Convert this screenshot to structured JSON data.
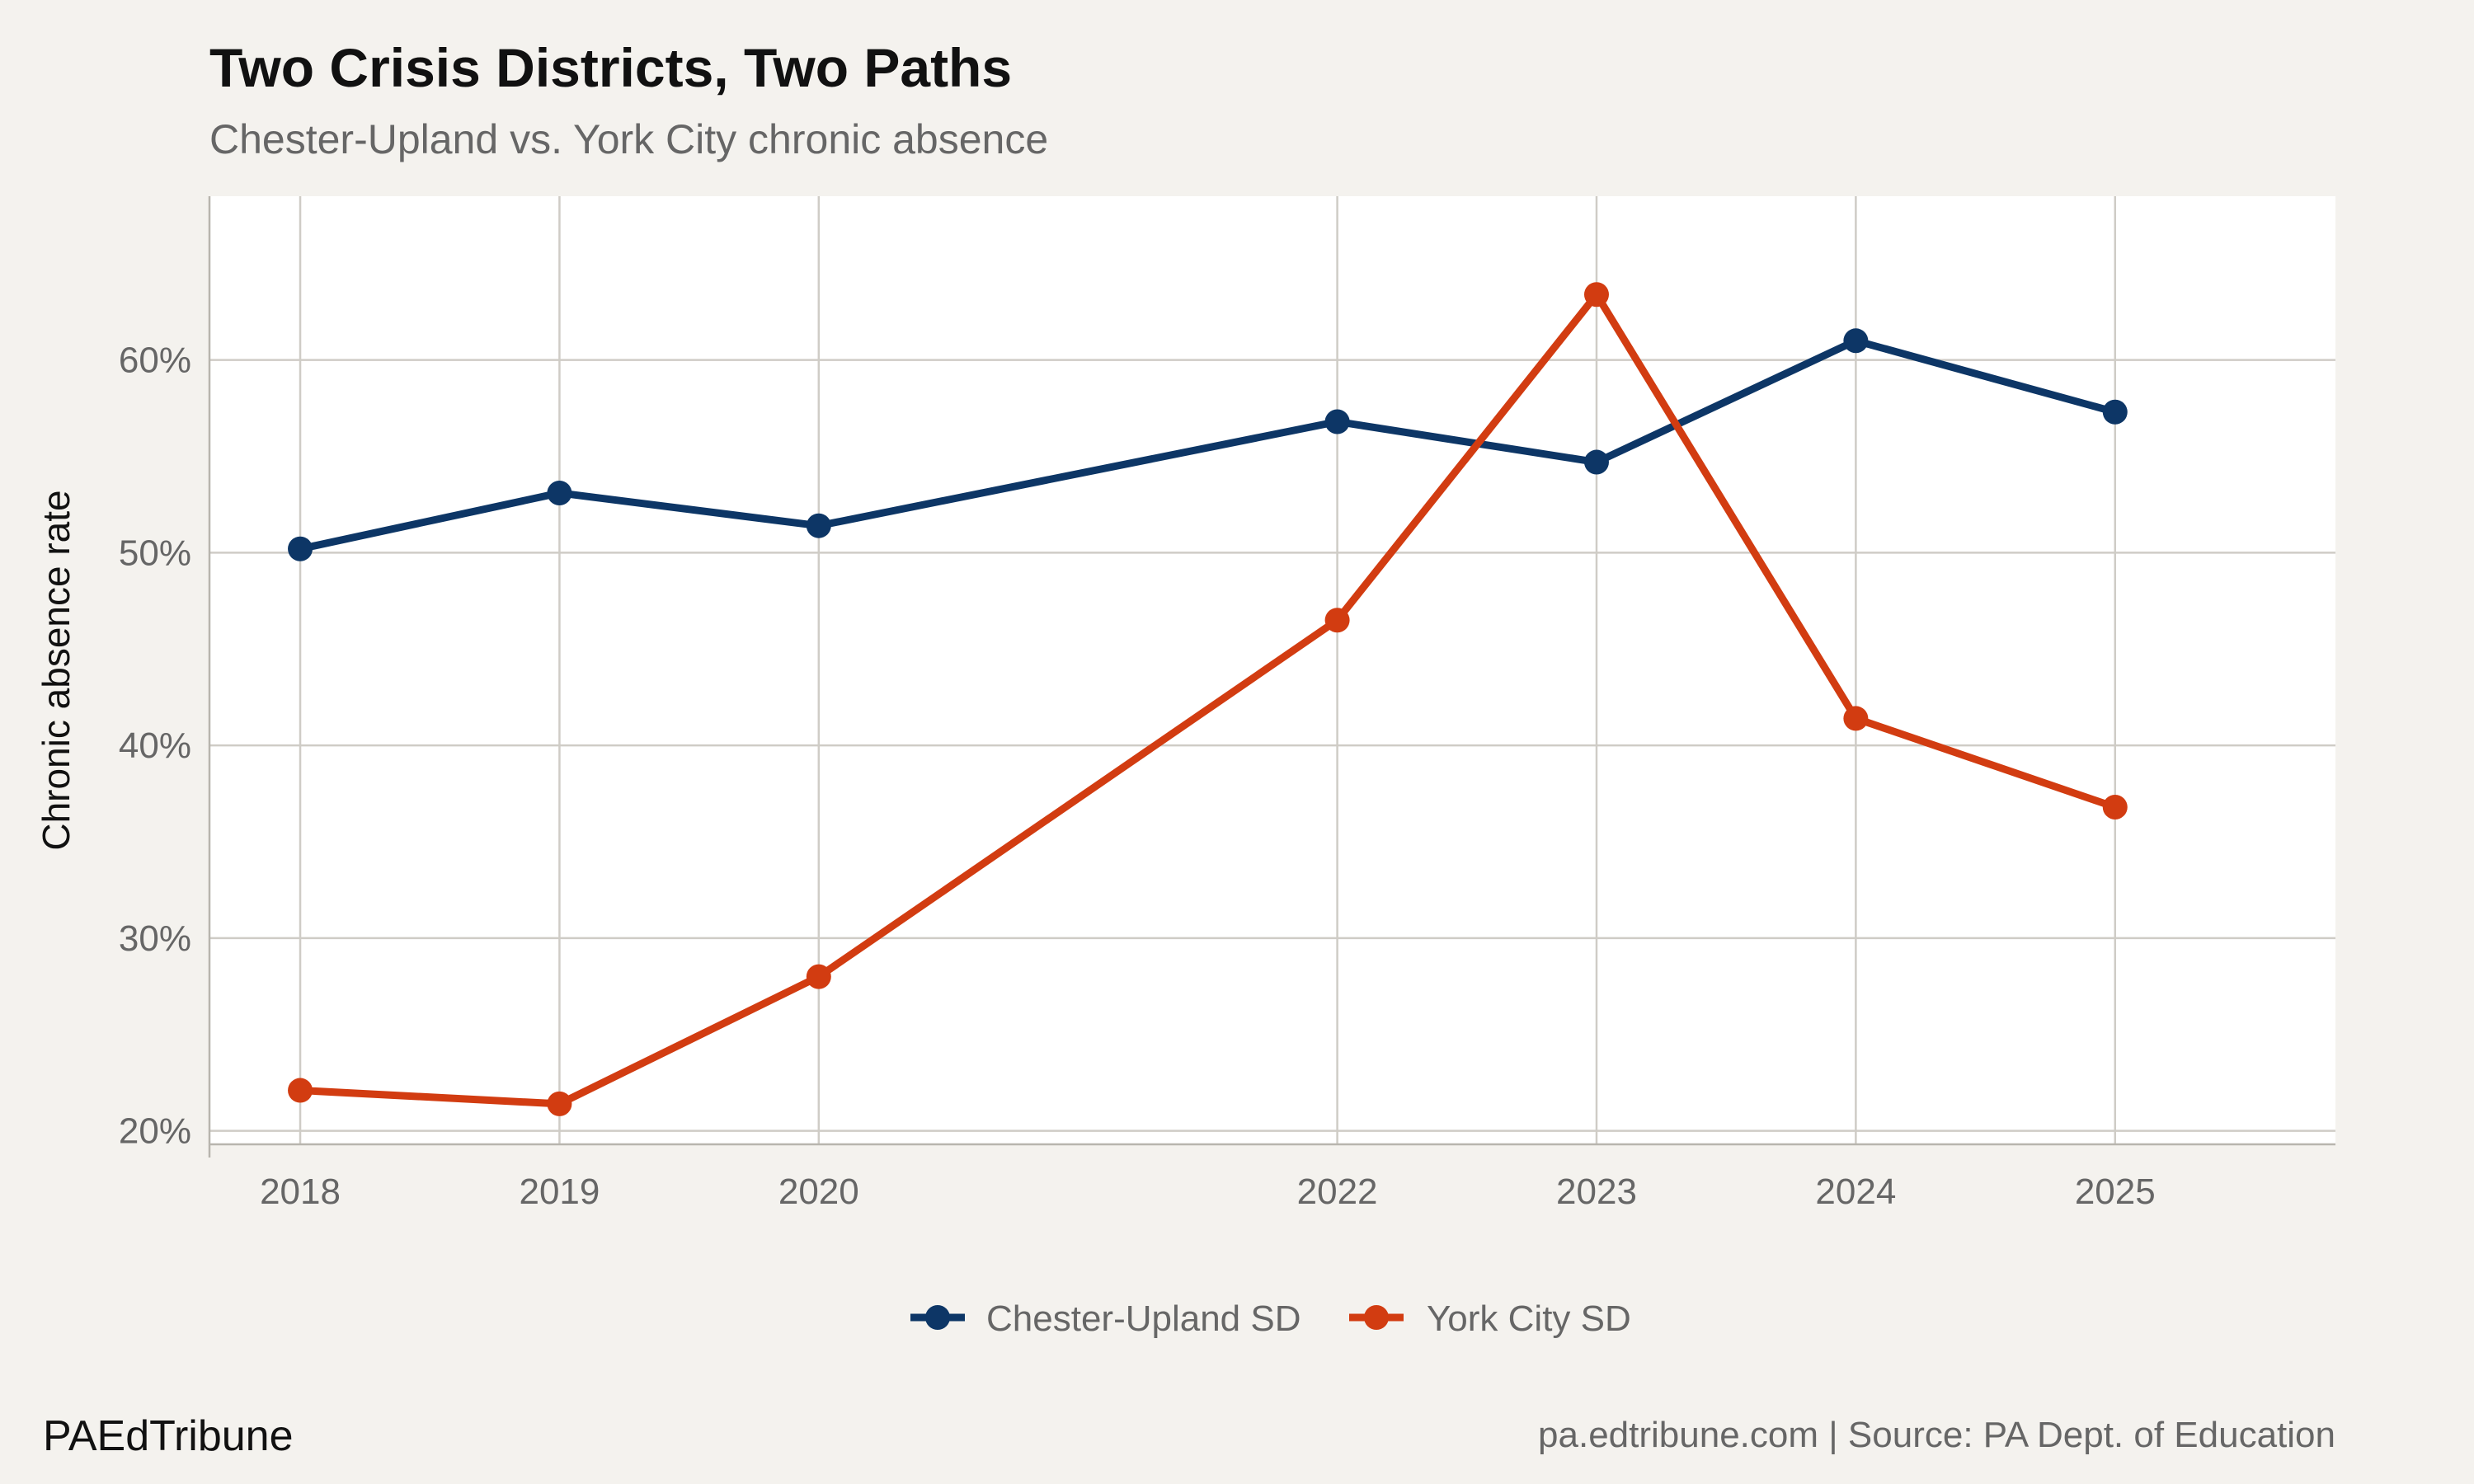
{
  "brand": "PAEdTribune",
  "source": "pa.edtribune.com | Source: PA Dept. of Education",
  "chart_data": {
    "type": "line",
    "title": "Two Crisis Districts, Two Paths",
    "subtitle": "Chester-Upland vs. York City chronic absence",
    "xlabel": "",
    "ylabel": "Chronic absence rate",
    "x": [
      2018,
      2019,
      2020,
      2022,
      2023,
      2024,
      2025
    ],
    "x_tick_labels": [
      "2018",
      "2019",
      "2020",
      "2022",
      "2023",
      "2024",
      "2025"
    ],
    "xlim": [
      2017.65,
      2025.85
    ],
    "ylim": [
      19.3,
      68.5
    ],
    "y_ticks": [
      20,
      30,
      40,
      50,
      60
    ],
    "y_tick_labels": [
      "20%",
      "30%",
      "40%",
      "50%",
      "60%"
    ],
    "grid": true,
    "legend_position": "bottom",
    "series": [
      {
        "name": "Chester-Upland SD",
        "color": "#0d3666",
        "values": [
          50.2,
          53.1,
          51.4,
          56.8,
          54.7,
          61.0,
          57.3
        ]
      },
      {
        "name": "York City SD",
        "color": "#d23c11",
        "values": [
          22.1,
          21.4,
          28.0,
          46.5,
          63.4,
          41.4,
          36.8
        ]
      }
    ]
  }
}
